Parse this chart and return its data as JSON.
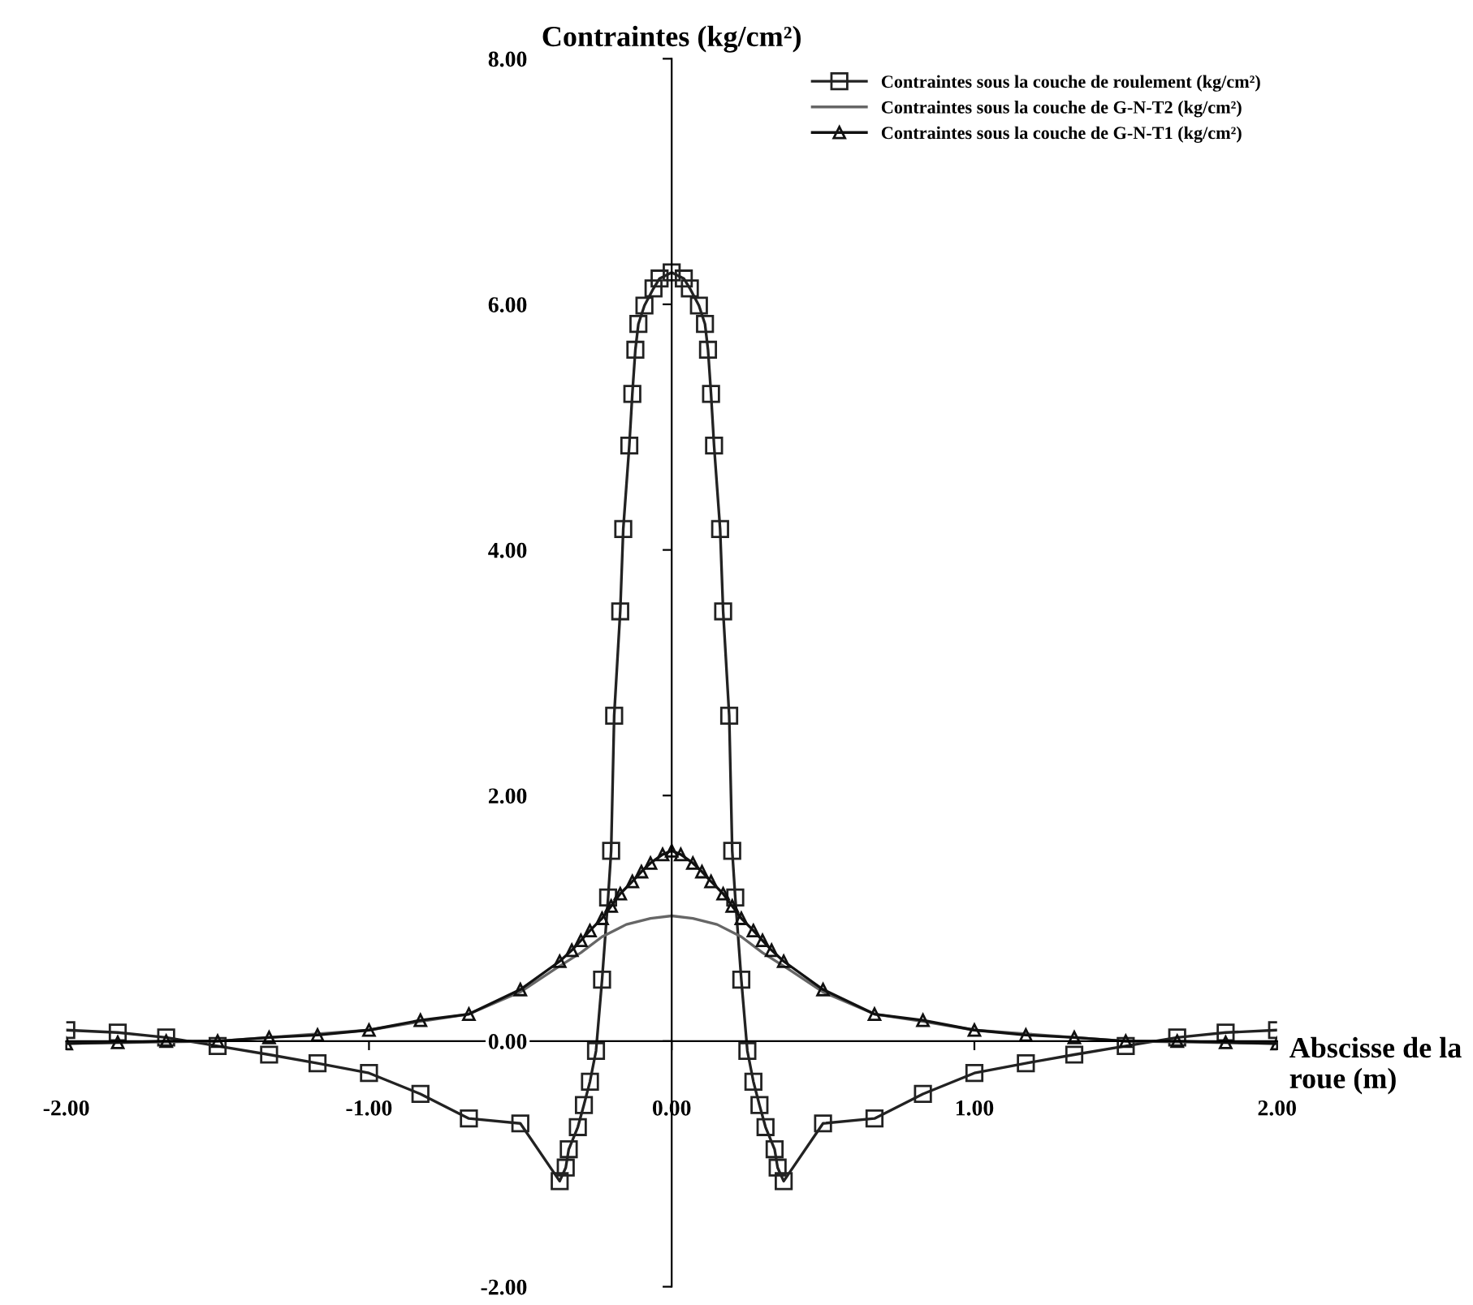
{
  "chart_data": {
    "type": "line",
    "xlabel": "Abscisse de la roue (m)",
    "ylabel": "Contraintes (kg/cm²)",
    "xlim": [
      -2,
      2
    ],
    "ylim": [
      -2,
      8
    ],
    "xticks": [
      {
        "value": -2,
        "label": "-2.00"
      },
      {
        "value": -1,
        "label": "-1.00"
      },
      {
        "value": 0,
        "label": "0.00"
      },
      {
        "value": 1,
        "label": "1.00"
      },
      {
        "value": 2,
        "label": "2.00"
      }
    ],
    "yticks": [
      {
        "value": -2,
        "label": "-2.00"
      },
      {
        "value": 0,
        "label": "0.00"
      },
      {
        "value": 2,
        "label": "2.00"
      },
      {
        "value": 4,
        "label": "4.00"
      },
      {
        "value": 6,
        "label": "6.00"
      },
      {
        "value": 8,
        "label": "8.00"
      }
    ],
    "legend": "top right",
    "series": [
      {
        "name": "Contraintes sous la couche de roulement (kg/cm²)",
        "color": "#222222",
        "marker": "square",
        "x": [
          -2,
          -1.83,
          -1.67,
          -1.5,
          -1.33,
          -1.17,
          -1.0,
          -0.83,
          -0.67,
          -0.5,
          -0.37,
          -0.35,
          -0.34,
          -0.31,
          -0.29,
          -0.27,
          -0.25,
          -0.23,
          -0.21,
          -0.2,
          -0.19,
          -0.17,
          -0.16,
          -0.14,
          -0.13,
          -0.12,
          -0.11,
          -0.09,
          -0.06,
          -0.04,
          0,
          0.04,
          0.06,
          0.09,
          0.11,
          0.12,
          0.13,
          0.14,
          0.16,
          0.17,
          0.19,
          0.2,
          0.21,
          0.23,
          0.25,
          0.27,
          0.29,
          0.31,
          0.34,
          0.35,
          0.37,
          0.5,
          0.67,
          0.83,
          1.0,
          1.17,
          1.33,
          1.5,
          1.67,
          1.83,
          2
        ],
        "values": [
          0.09,
          0.07,
          0.03,
          -0.04,
          -0.11,
          -0.18,
          -0.26,
          -0.43,
          -0.63,
          -0.67,
          -1.14,
          -1.03,
          -0.88,
          -0.7,
          -0.52,
          -0.33,
          -0.08,
          0.5,
          1.17,
          1.55,
          2.65,
          3.5,
          4.17,
          4.85,
          5.27,
          5.63,
          5.84,
          5.99,
          6.13,
          6.21,
          6.26,
          6.21,
          6.13,
          5.99,
          5.84,
          5.63,
          5.27,
          4.85,
          4.17,
          3.5,
          2.65,
          1.55,
          1.17,
          0.5,
          -0.08,
          -0.33,
          -0.52,
          -0.7,
          -0.88,
          -1.03,
          -1.14,
          -0.67,
          -0.63,
          -0.43,
          -0.26,
          -0.18,
          -0.11,
          -0.04,
          0.03,
          0.07,
          0.09
        ]
      },
      {
        "name": "Contraintes sous la couche de G-N-T2 (kg/cm²)",
        "color": "#666666",
        "marker": "none",
        "x": [
          -2,
          -1.5,
          -1.0,
          -0.83,
          -0.67,
          -0.5,
          -0.39,
          -0.3,
          -0.23,
          -0.15,
          -0.07,
          0,
          0.07,
          0.15,
          0.23,
          0.3,
          0.39,
          0.5,
          0.67,
          0.83,
          1.0,
          1.5,
          2
        ],
        "values": [
          -0.02,
          0.0,
          0.09,
          0.16,
          0.22,
          0.4,
          0.58,
          0.72,
          0.85,
          0.95,
          1.0,
          1.02,
          1.0,
          0.95,
          0.85,
          0.72,
          0.58,
          0.4,
          0.22,
          0.16,
          0.09,
          0.0,
          -0.02
        ]
      },
      {
        "name": "Contraintes sous la couche de G-N-T1 (kg/cm²)",
        "color": "#111111",
        "marker": "triangle",
        "x": [
          -2,
          -1.83,
          -1.67,
          -1.5,
          -1.33,
          -1.17,
          -1.0,
          -0.83,
          -0.67,
          -0.5,
          -0.37,
          -0.33,
          -0.3,
          -0.27,
          -0.23,
          -0.2,
          -0.17,
          -0.13,
          -0.1,
          -0.07,
          -0.03,
          0,
          0.03,
          0.07,
          0.1,
          0.13,
          0.17,
          0.2,
          0.23,
          0.27,
          0.3,
          0.33,
          0.37,
          0.5,
          0.67,
          0.83,
          1.0,
          1.17,
          1.33,
          1.5,
          1.67,
          1.83,
          2
        ],
        "values": [
          -0.02,
          -0.01,
          0.0,
          0.0,
          0.03,
          0.05,
          0.09,
          0.17,
          0.22,
          0.42,
          0.65,
          0.74,
          0.82,
          0.9,
          1.0,
          1.1,
          1.2,
          1.3,
          1.38,
          1.45,
          1.52,
          1.55,
          1.52,
          1.45,
          1.38,
          1.3,
          1.2,
          1.1,
          1.0,
          0.9,
          0.82,
          0.74,
          0.65,
          0.42,
          0.22,
          0.17,
          0.09,
          0.05,
          0.03,
          0.0,
          0.0,
          -0.01,
          -0.02
        ]
      }
    ]
  }
}
